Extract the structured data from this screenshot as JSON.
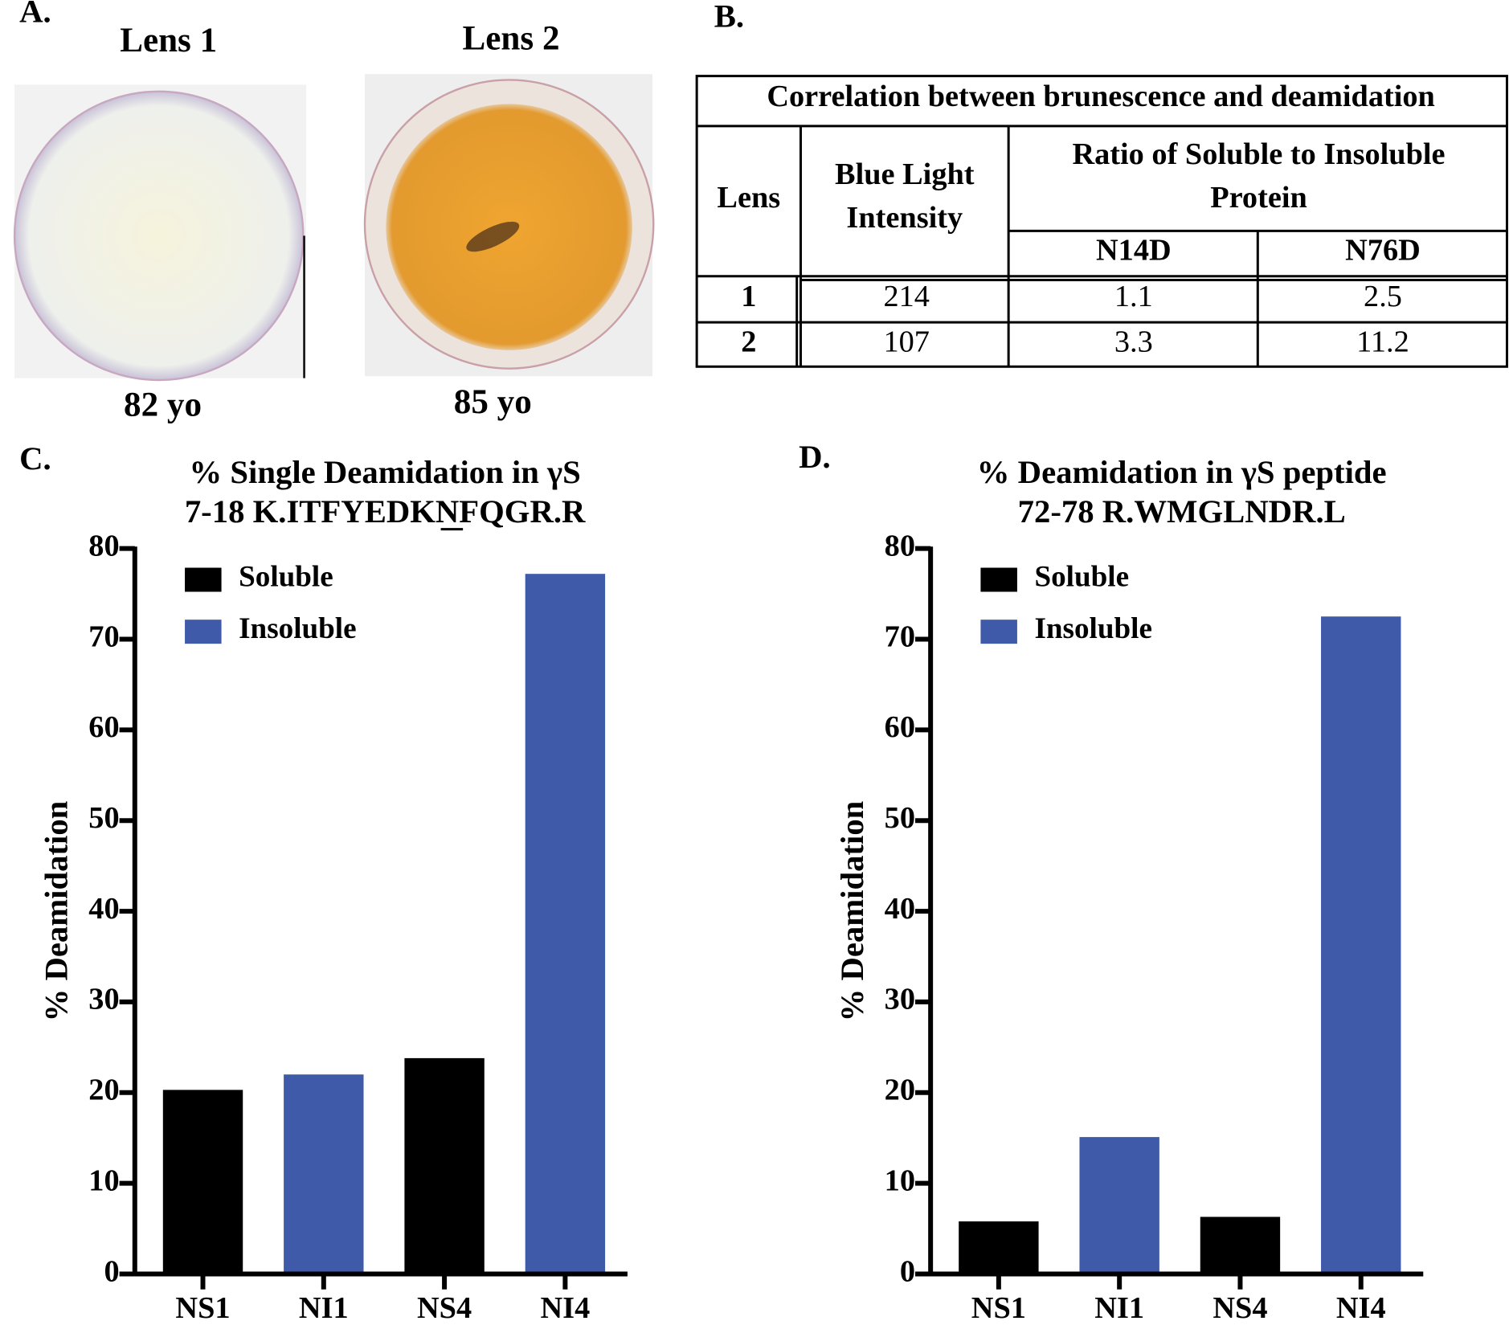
{
  "panel_labels": [
    "A.",
    "B.",
    "C.",
    "D."
  ],
  "lenses": [
    {
      "label": "Lens 1",
      "age": "82 yo"
    },
    {
      "label": "Lens 2",
      "age": "85 yo"
    }
  ],
  "table": {
    "title": "Correlation between brunescence and deamidation",
    "header": {
      "lens": "Lens",
      "intensity": [
        "Blue Light",
        "Intensity"
      ],
      "ratio": [
        "Ratio of Soluble to Insoluble",
        "Protein"
      ],
      "sites": [
        "N14D",
        "N76D"
      ]
    },
    "rows": [
      [
        1,
        214,
        1.1,
        2.5
      ],
      [
        2,
        107,
        3.3,
        11.2
      ]
    ]
  },
  "chart_data": [
    {
      "type": "bar",
      "title": [
        "% Single Deamidation in γS",
        "7-18 K.ITFYEDKNFQGR.R"
      ],
      "y_label": "% Deamidation",
      "categories": [
        "NS1",
        "NI1",
        "NS4",
        "NI4"
      ],
      "series": [
        {
          "name": "Soluble",
          "color": "#000000",
          "values": [
            20.3,
            null,
            23.8,
            null
          ]
        },
        {
          "name": "Insoluble",
          "color": "#3f5aa8",
          "values": [
            null,
            22.0,
            null,
            77.2
          ]
        }
      ],
      "ylim": [
        0,
        80
      ],
      "yticks": [
        0,
        10,
        20,
        30,
        40,
        50,
        60,
        70,
        80
      ]
    },
    {
      "type": "bar",
      "title": [
        "% Deamidation in γS peptide",
        "72-78 R.WMGLNDR.L"
      ],
      "y_label": "% Deamidation",
      "categories": [
        "NS1",
        "NI1",
        "NS4",
        "NI4"
      ],
      "series": [
        {
          "name": "Soluble",
          "color": "#000000",
          "values": [
            5.8,
            null,
            6.3,
            null
          ]
        },
        {
          "name": "Insoluble",
          "color": "#3f5aa8",
          "values": [
            null,
            15.1,
            null,
            72.5
          ]
        }
      ],
      "ylim": [
        0,
        80
      ],
      "yticks": [
        0,
        10,
        20,
        30,
        40,
        50,
        60,
        70,
        80
      ]
    }
  ]
}
